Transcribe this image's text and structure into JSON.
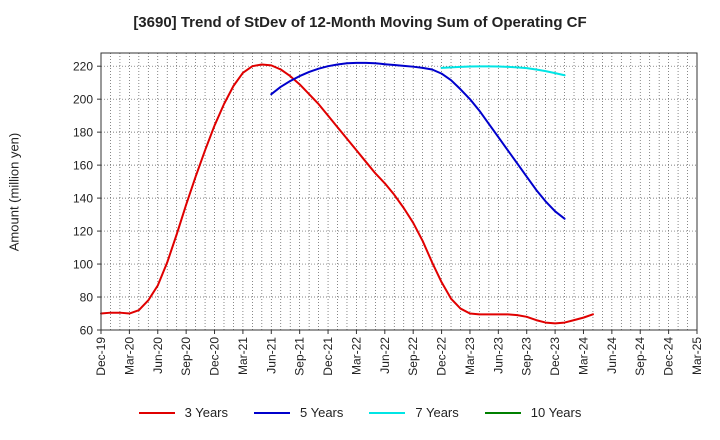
{
  "chart_data": {
    "type": "line",
    "title": "[3690]  Trend of StDev of 12-Month Moving Sum of Operating CF",
    "xlabel": "",
    "ylabel": "Amount (million yen)",
    "ylim": [
      60,
      228
    ],
    "yticks": [
      60,
      80,
      100,
      120,
      140,
      160,
      180,
      200,
      220
    ],
    "xtick_labels": [
      "Dec-19",
      "Mar-20",
      "Jun-20",
      "Sep-20",
      "Dec-20",
      "Mar-21",
      "Jun-21",
      "Sep-21",
      "Dec-21",
      "Mar-22",
      "Jun-22",
      "Sep-22",
      "Dec-22",
      "Mar-23",
      "Jun-23",
      "Sep-23",
      "Dec-23",
      "Mar-24",
      "Jun-24",
      "Sep-24",
      "Dec-24",
      "Mar-25"
    ],
    "grid": true,
    "legend_position": "bottom",
    "series": [
      {
        "name": "3 Years",
        "color": "#e00000",
        "points": [
          [
            "Dec-19",
            70
          ],
          [
            "Jan-20",
            70.5
          ],
          [
            "Feb-20",
            70.5
          ],
          [
            "Mar-20",
            70
          ],
          [
            "Apr-20",
            72
          ],
          [
            "May-20",
            78
          ],
          [
            "Jun-20",
            87
          ],
          [
            "Jul-20",
            101
          ],
          [
            "Aug-20",
            118
          ],
          [
            "Sep-20",
            136
          ],
          [
            "Oct-20",
            153
          ],
          [
            "Nov-20",
            169
          ],
          [
            "Dec-20",
            184
          ],
          [
            "Jan-21",
            197
          ],
          [
            "Feb-21",
            208
          ],
          [
            "Mar-21",
            216
          ],
          [
            "Apr-21",
            220
          ],
          [
            "May-21",
            221
          ],
          [
            "Jun-21",
            220.5
          ],
          [
            "Jul-21",
            218
          ],
          [
            "Aug-21",
            214
          ],
          [
            "Sep-21",
            209
          ],
          [
            "Oct-21",
            203
          ],
          [
            "Nov-21",
            197
          ],
          [
            "Dec-21",
            190
          ],
          [
            "Jan-22",
            183
          ],
          [
            "Feb-22",
            176
          ],
          [
            "Mar-22",
            169
          ],
          [
            "Apr-22",
            162
          ],
          [
            "May-22",
            155
          ],
          [
            "Jun-22",
            149
          ],
          [
            "Jul-22",
            142
          ],
          [
            "Aug-22",
            134
          ],
          [
            "Sep-22",
            125
          ],
          [
            "Oct-22",
            114
          ],
          [
            "Nov-22",
            101
          ],
          [
            "Dec-22",
            89
          ],
          [
            "Jan-23",
            79
          ],
          [
            "Feb-23",
            73
          ],
          [
            "Mar-23",
            70
          ],
          [
            "Apr-23",
            69.5
          ],
          [
            "May-23",
            69.5
          ],
          [
            "Jun-23",
            69.5
          ],
          [
            "Jul-23",
            69.5
          ],
          [
            "Aug-23",
            69
          ],
          [
            "Sep-23",
            68
          ],
          [
            "Oct-23",
            66
          ],
          [
            "Nov-23",
            64.5
          ],
          [
            "Dec-23",
            64
          ],
          [
            "Jan-24",
            64.5
          ],
          [
            "Feb-24",
            66
          ],
          [
            "Mar-24",
            67.5
          ],
          [
            "Apr-24",
            69.5
          ]
        ]
      },
      {
        "name": "5 Years",
        "color": "#0000cc",
        "points": [
          [
            "Jun-21",
            203
          ],
          [
            "Jul-21",
            207.5
          ],
          [
            "Aug-21",
            211
          ],
          [
            "Sep-21",
            214
          ],
          [
            "Oct-21",
            216.5
          ],
          [
            "Nov-21",
            218.5
          ],
          [
            "Dec-21",
            220
          ],
          [
            "Jan-22",
            221
          ],
          [
            "Feb-22",
            221.8
          ],
          [
            "Mar-22",
            222
          ],
          [
            "Apr-22",
            222
          ],
          [
            "May-22",
            221.8
          ],
          [
            "Jun-22",
            221.2
          ],
          [
            "Jul-22",
            220.7
          ],
          [
            "Aug-22",
            220.2
          ],
          [
            "Sep-22",
            219.7
          ],
          [
            "Oct-22",
            219
          ],
          [
            "Nov-22",
            218
          ],
          [
            "Dec-22",
            215.5
          ],
          [
            "Jan-23",
            211.5
          ],
          [
            "Feb-23",
            206
          ],
          [
            "Mar-23",
            200
          ],
          [
            "Apr-23",
            193
          ],
          [
            "May-23",
            185
          ],
          [
            "Jun-23",
            177
          ],
          [
            "Jul-23",
            169
          ],
          [
            "Aug-23",
            161
          ],
          [
            "Sep-23",
            153
          ],
          [
            "Oct-23",
            145
          ],
          [
            "Nov-23",
            138
          ],
          [
            "Dec-23",
            132
          ],
          [
            "Jan-24",
            127.5
          ]
        ]
      },
      {
        "name": "7 Years",
        "color": "#00e5e5",
        "points": [
          [
            "Dec-22",
            219
          ],
          [
            "Jan-23",
            219.3
          ],
          [
            "Feb-23",
            219.6
          ],
          [
            "Mar-23",
            219.8
          ],
          [
            "Apr-23",
            219.9
          ],
          [
            "May-23",
            219.9
          ],
          [
            "Jun-23",
            219.8
          ],
          [
            "Jul-23",
            219.6
          ],
          [
            "Aug-23",
            219.3
          ],
          [
            "Sep-23",
            218.8
          ],
          [
            "Oct-23",
            218
          ],
          [
            "Nov-23",
            217
          ],
          [
            "Dec-23",
            215.8
          ],
          [
            "Jan-24",
            214.5
          ]
        ]
      },
      {
        "name": "10 Years",
        "color": "#008000",
        "points": []
      }
    ]
  }
}
